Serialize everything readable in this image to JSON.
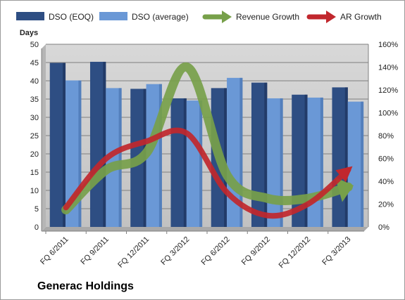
{
  "chart_data": {
    "type": "bar",
    "title": "Generac Holdings",
    "ylabel": "Days",
    "ylim": [
      0,
      50
    ],
    "y2lim": [
      0,
      160
    ],
    "yticks": [
      0,
      5,
      10,
      15,
      20,
      25,
      30,
      35,
      40,
      45,
      50
    ],
    "y2ticks": [
      "0%",
      "20%",
      "40%",
      "60%",
      "80%",
      "100%",
      "120%",
      "140%",
      "160%"
    ],
    "grid": true,
    "legend_position": "top",
    "categories": [
      "FQ 6/2011",
      "FQ 9/2011",
      "FQ 12/2011",
      "FQ 3/2012",
      "FQ 6/2012",
      "FQ 9/2012",
      "FQ 12/2012",
      "FQ 3/2013"
    ],
    "series": [
      {
        "name": "DSO (EOQ)",
        "kind": "bar",
        "axis": "left",
        "color": "#2e4e83",
        "values": [
          44.9,
          45.2,
          37.8,
          35.2,
          38.0,
          39.5,
          36.2,
          38.2
        ]
      },
      {
        "name": "DSO (average)",
        "kind": "bar",
        "axis": "left",
        "color": "#6a98d6",
        "values": [
          40.1,
          38.0,
          39.1,
          34.6,
          40.8,
          35.2,
          35.4,
          34.3
        ]
      },
      {
        "name": "Revenue Growth",
        "kind": "line",
        "axis": "right",
        "unit": "%",
        "color": "#77a04a",
        "values": [
          15,
          50,
          65,
          140,
          45,
          25,
          25,
          35
        ]
      },
      {
        "name": "AR Growth",
        "kind": "line",
        "axis": "right",
        "unit": "%",
        "color": "#c1272d",
        "values": [
          17,
          60,
          75,
          82,
          30,
          10,
          20,
          50
        ]
      }
    ]
  }
}
